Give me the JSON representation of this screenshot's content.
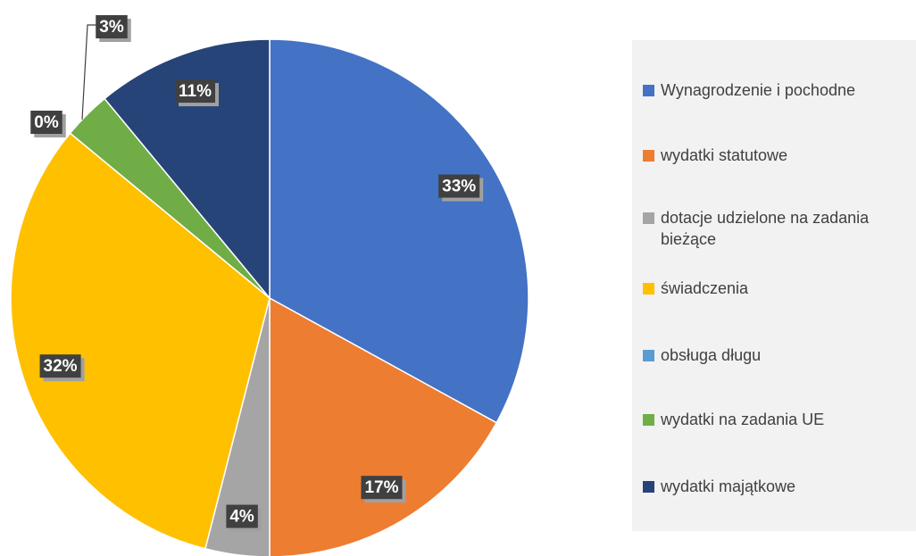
{
  "chart_data": {
    "type": "pie",
    "categories": [
      "Wynagrodzenie i pochodne",
      "wydatki statutowe",
      "dotacje udzielone na zadania bieżące",
      "świadczenia",
      "obsługa długu",
      "wydatki na zadania UE",
      "wydatki majątkowe"
    ],
    "values": [
      33,
      17,
      4,
      32,
      0,
      3,
      11
    ],
    "value_labels": [
      "33%",
      "17%",
      "4%",
      "32%",
      "0%",
      "3%",
      "11%"
    ],
    "colors": [
      "#4472c4",
      "#ed7d31",
      "#a5a5a5",
      "#ffc000",
      "#5b9bd5",
      "#70ad47",
      "#264478"
    ],
    "legend": "right"
  }
}
